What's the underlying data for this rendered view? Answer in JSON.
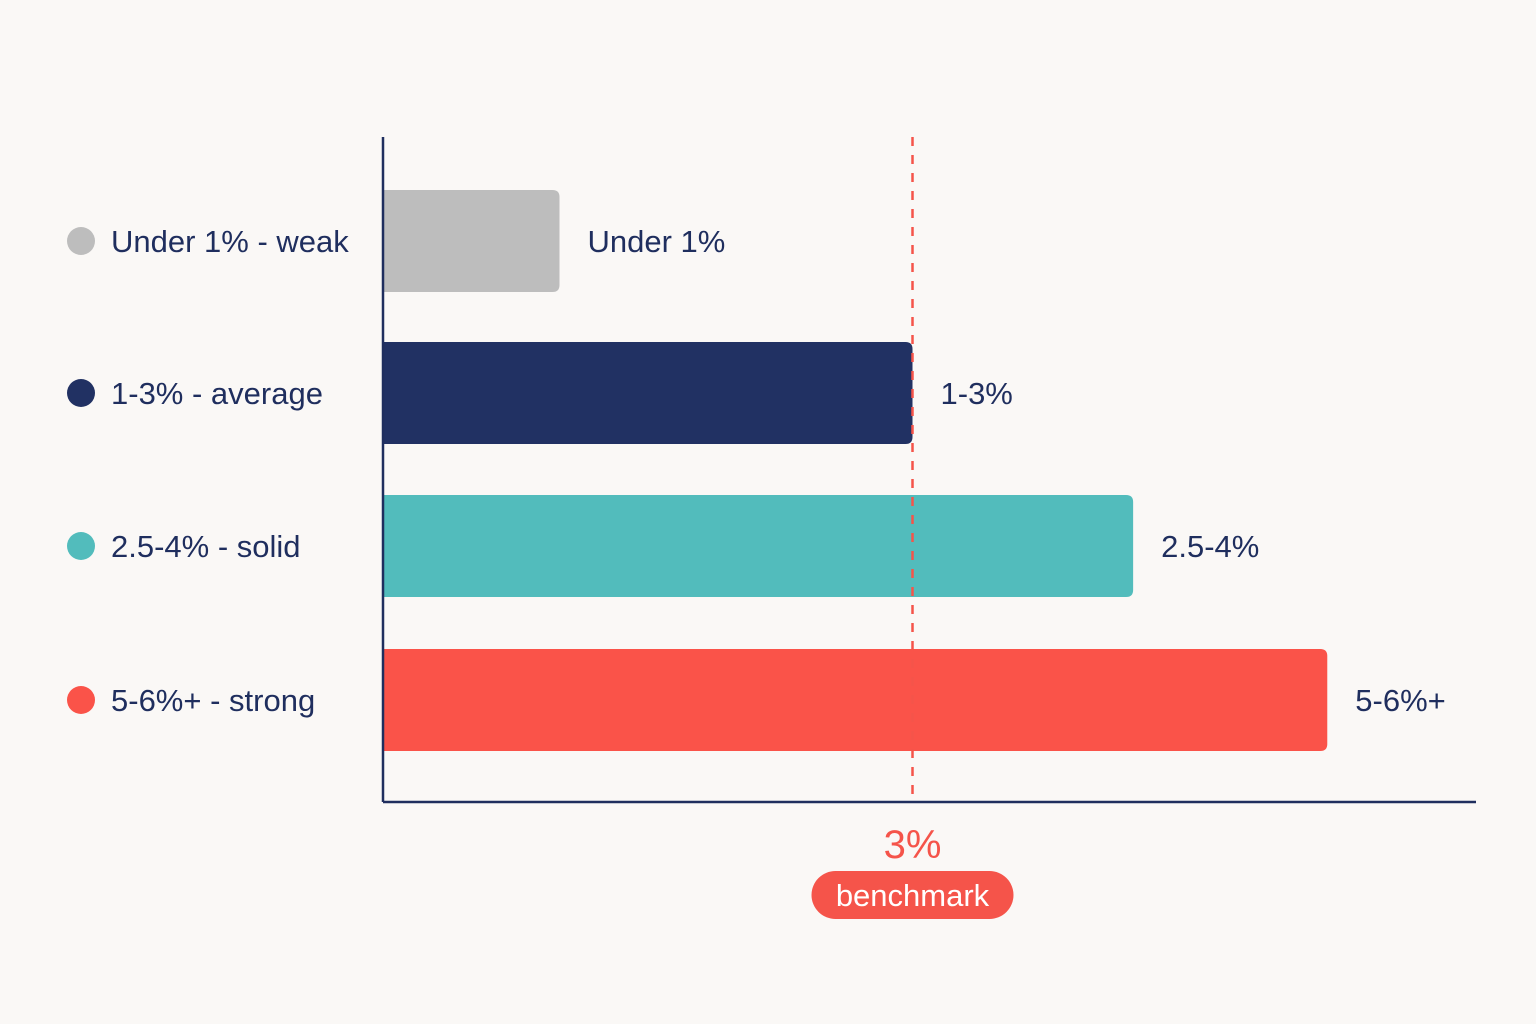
{
  "chart_data": {
    "type": "bar",
    "orientation": "horizontal",
    "categories": [
      "Under 1%",
      "1-3%",
      "2.5-4%",
      "5-6%+"
    ],
    "bar_labels": [
      "Under 1%",
      "1-3%",
      "2.5-4%",
      "5-6%+"
    ],
    "legend": [
      "Under 1% - weak",
      "1-3% - average",
      "2.5-4% - solid",
      "5-6%+ - strong"
    ],
    "values": [
      1,
      3,
      4.25,
      5.35
    ],
    "colors": [
      "#bdbdbd",
      "#213163",
      "#52bcbc",
      "#fa5349"
    ],
    "xlim": [
      0,
      6.2
    ],
    "grid": false,
    "legend_position": "left",
    "reference_line": {
      "value": 3,
      "label": "3%",
      "tag": "benchmark",
      "color": "#f5544a"
    }
  }
}
